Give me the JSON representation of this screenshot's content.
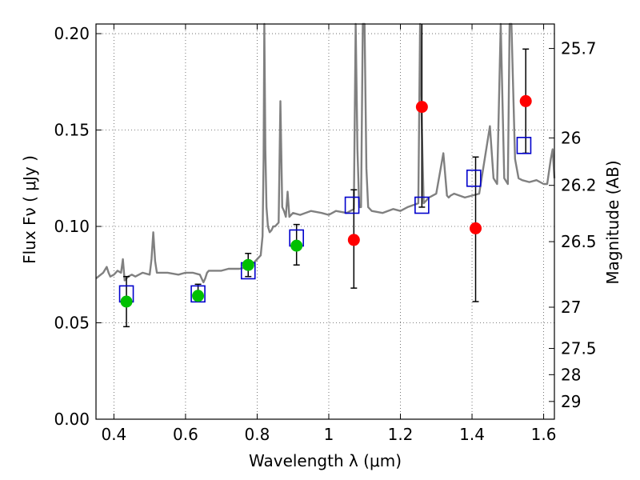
{
  "chart_data": {
    "type": "scatter",
    "xlabel": "Wavelength  λ (μm)",
    "ylabel": "Flux  Fν  ( μJy )",
    "ylabel_right": "Magnitude (AB)",
    "xlim": [
      0.35,
      1.63
    ],
    "ylim": [
      0.0,
      0.205
    ],
    "grid": true,
    "x_ticks": [
      {
        "value": 0.4,
        "label": "0.4"
      },
      {
        "value": 0.6,
        "label": "0.6"
      },
      {
        "value": 0.8,
        "label": "0.8"
      },
      {
        "value": 1.0,
        "label": "1"
      },
      {
        "value": 1.2,
        "label": "1.2"
      },
      {
        "value": 1.4,
        "label": "1.4"
      },
      {
        "value": 1.6,
        "label": "1.6"
      }
    ],
    "y_ticks": [
      {
        "value": 0.0,
        "label": "0.00"
      },
      {
        "value": 0.05,
        "label": "0.05"
      },
      {
        "value": 0.1,
        "label": "0.10"
      },
      {
        "value": 0.15,
        "label": "0.15"
      },
      {
        "value": 0.2,
        "label": "0.20"
      }
    ],
    "right_ticks": [
      {
        "label": "25.7",
        "flux": 0.1923
      },
      {
        "label": "26",
        "flux": 0.1459
      },
      {
        "label": "26.2",
        "flux": 0.1213
      },
      {
        "label": "26.5",
        "flux": 0.0921
      },
      {
        "label": "27",
        "flux": 0.0581
      },
      {
        "label": "27.5",
        "flux": 0.0367
      },
      {
        "label": "28",
        "flux": 0.0231
      },
      {
        "label": "29",
        "flux": 0.0092
      }
    ],
    "model_spectrum": {
      "name": "model",
      "color": "#808080",
      "x": [
        0.35,
        0.37,
        0.38,
        0.385,
        0.39,
        0.4,
        0.41,
        0.42,
        0.425,
        0.43,
        0.44,
        0.45,
        0.46,
        0.48,
        0.5,
        0.505,
        0.51,
        0.515,
        0.52,
        0.55,
        0.58,
        0.6,
        0.62,
        0.64,
        0.65,
        0.655,
        0.66,
        0.665,
        0.67,
        0.7,
        0.72,
        0.75,
        0.78,
        0.8,
        0.81,
        0.815,
        0.818,
        0.82,
        0.823,
        0.826,
        0.83,
        0.835,
        0.84,
        0.845,
        0.85,
        0.855,
        0.86,
        0.865,
        0.87,
        0.875,
        0.88,
        0.885,
        0.89,
        0.9,
        0.92,
        0.95,
        0.98,
        1.0,
        1.02,
        1.05,
        1.07,
        1.075,
        1.08,
        1.085,
        1.09,
        1.095,
        1.1,
        1.105,
        1.11,
        1.12,
        1.15,
        1.18,
        1.2,
        1.22,
        1.25,
        1.255,
        1.26,
        1.265,
        1.27,
        1.28,
        1.3,
        1.32,
        1.33,
        1.335,
        1.34,
        1.35,
        1.38,
        1.4,
        1.42,
        1.45,
        1.46,
        1.47,
        1.48,
        1.49,
        1.5,
        1.505,
        1.51,
        1.52,
        1.53,
        1.54,
        1.56,
        1.58,
        1.6,
        1.61,
        1.62,
        1.625,
        1.63
      ],
      "y": [
        0.073,
        0.076,
        0.079,
        0.076,
        0.074,
        0.075,
        0.077,
        0.076,
        0.083,
        0.072,
        0.074,
        0.075,
        0.074,
        0.076,
        0.075,
        0.083,
        0.097,
        0.082,
        0.076,
        0.076,
        0.075,
        0.076,
        0.076,
        0.075,
        0.071,
        0.073,
        0.076,
        0.077,
        0.077,
        0.077,
        0.078,
        0.078,
        0.079,
        0.083,
        0.085,
        0.095,
        0.135,
        0.205,
        0.14,
        0.11,
        0.1,
        0.097,
        0.098,
        0.1,
        0.1,
        0.101,
        0.102,
        0.165,
        0.11,
        0.108,
        0.105,
        0.118,
        0.105,
        0.107,
        0.106,
        0.108,
        0.107,
        0.106,
        0.108,
        0.107,
        0.109,
        0.205,
        0.14,
        0.11,
        0.11,
        0.205,
        0.205,
        0.13,
        0.11,
        0.108,
        0.107,
        0.109,
        0.108,
        0.11,
        0.112,
        0.205,
        0.15,
        0.112,
        0.113,
        0.115,
        0.117,
        0.138,
        0.116,
        0.115,
        0.116,
        0.117,
        0.115,
        0.116,
        0.117,
        0.152,
        0.125,
        0.122,
        0.205,
        0.125,
        0.122,
        0.205,
        0.205,
        0.135,
        0.125,
        0.124,
        0.123,
        0.124,
        0.122,
        0.122,
        0.135,
        0.14,
        0.125
      ]
    },
    "model_photometry": {
      "marker": "open-square",
      "color": "#0000cc",
      "x": [
        0.435,
        0.635,
        0.775,
        0.91,
        1.065,
        1.26,
        1.405,
        1.545
      ],
      "y": [
        0.065,
        0.065,
        0.077,
        0.094,
        0.111,
        0.111,
        0.125,
        0.142
      ]
    },
    "detections": {
      "marker": "filled-circle",
      "color": "#00c000",
      "x": [
        0.435,
        0.635,
        0.775,
        0.91
      ],
      "y": [
        0.061,
        0.064,
        0.08,
        0.09
      ],
      "err_low": [
        0.048,
        0.062,
        0.074,
        0.08
      ],
      "err_high": [
        0.074,
        0.07,
        0.086,
        0.101
      ]
    },
    "upper_points": {
      "marker": "filled-circle",
      "color": "#ff0000",
      "x": [
        1.07,
        1.26,
        1.41,
        1.55
      ],
      "y": [
        0.093,
        0.162,
        0.099,
        0.165
      ],
      "err_low": [
        0.068,
        0.11,
        0.061,
        0.138
      ],
      "err_high": [
        0.119,
        0.205,
        0.136,
        0.192
      ]
    }
  }
}
